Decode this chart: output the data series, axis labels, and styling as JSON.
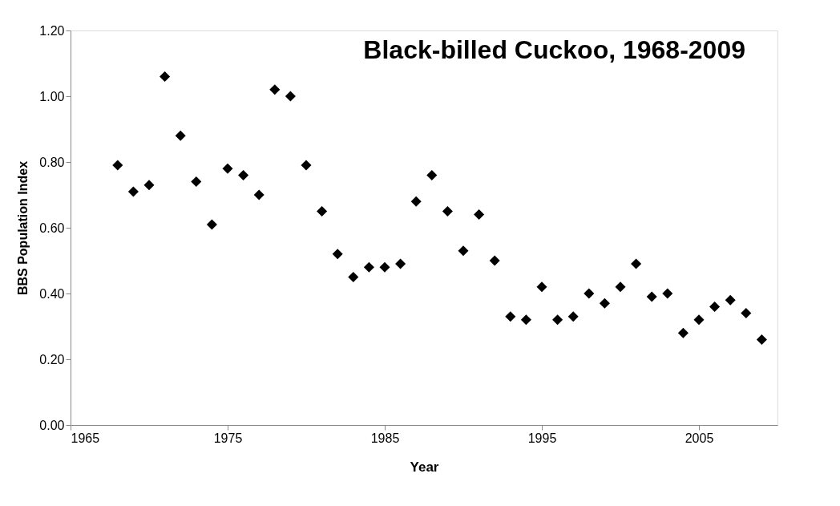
{
  "chart_data": {
    "type": "scatter",
    "title": "Black-billed Cuckoo, 1968-2009",
    "xlabel": "Year",
    "ylabel": "BBS Population Index",
    "x": [
      1968,
      1969,
      1970,
      1971,
      1972,
      1973,
      1974,
      1975,
      1976,
      1977,
      1978,
      1979,
      1980,
      1981,
      1982,
      1983,
      1984,
      1985,
      1986,
      1987,
      1988,
      1989,
      1990,
      1991,
      1992,
      1993,
      1994,
      1995,
      1996,
      1997,
      1998,
      1999,
      2000,
      2001,
      2002,
      2003,
      2004,
      2005,
      2006,
      2007,
      2008,
      2009
    ],
    "series": [
      {
        "color": "#000000",
        "values": [
          0.79,
          0.71,
          0.73,
          1.06,
          0.88,
          0.74,
          0.61,
          0.78,
          0.76,
          0.7,
          1.02,
          1.0,
          0.79,
          0.65,
          0.52,
          0.45,
          0.48,
          0.48,
          0.49,
          0.68,
          0.76,
          0.65,
          0.53,
          0.64,
          0.5,
          0.33,
          0.32,
          0.42,
          0.32,
          0.33,
          0.4,
          0.37,
          0.42,
          0.49,
          0.39,
          0.4,
          0.28,
          0.32,
          0.36,
          0.38,
          0.34,
          0.26
        ]
      }
    ],
    "xlim": [
      1965,
      2010
    ],
    "xticks": [
      1965,
      1975,
      1985,
      1995,
      2005
    ],
    "ylim": [
      0,
      1.2
    ],
    "yticks": [
      {
        "value": 0,
        "label": "0.00"
      },
      {
        "value": 0.2,
        "label": "0.20"
      },
      {
        "value": 0.4,
        "label": "0.40"
      },
      {
        "value": 0.6,
        "label": "0.60"
      },
      {
        "value": 0.8,
        "label": "0.80"
      },
      {
        "value": 1.0,
        "label": "1.00"
      },
      {
        "value": 1.2,
        "label": "1.20"
      }
    ],
    "grid": false,
    "marker": "diamond"
  }
}
